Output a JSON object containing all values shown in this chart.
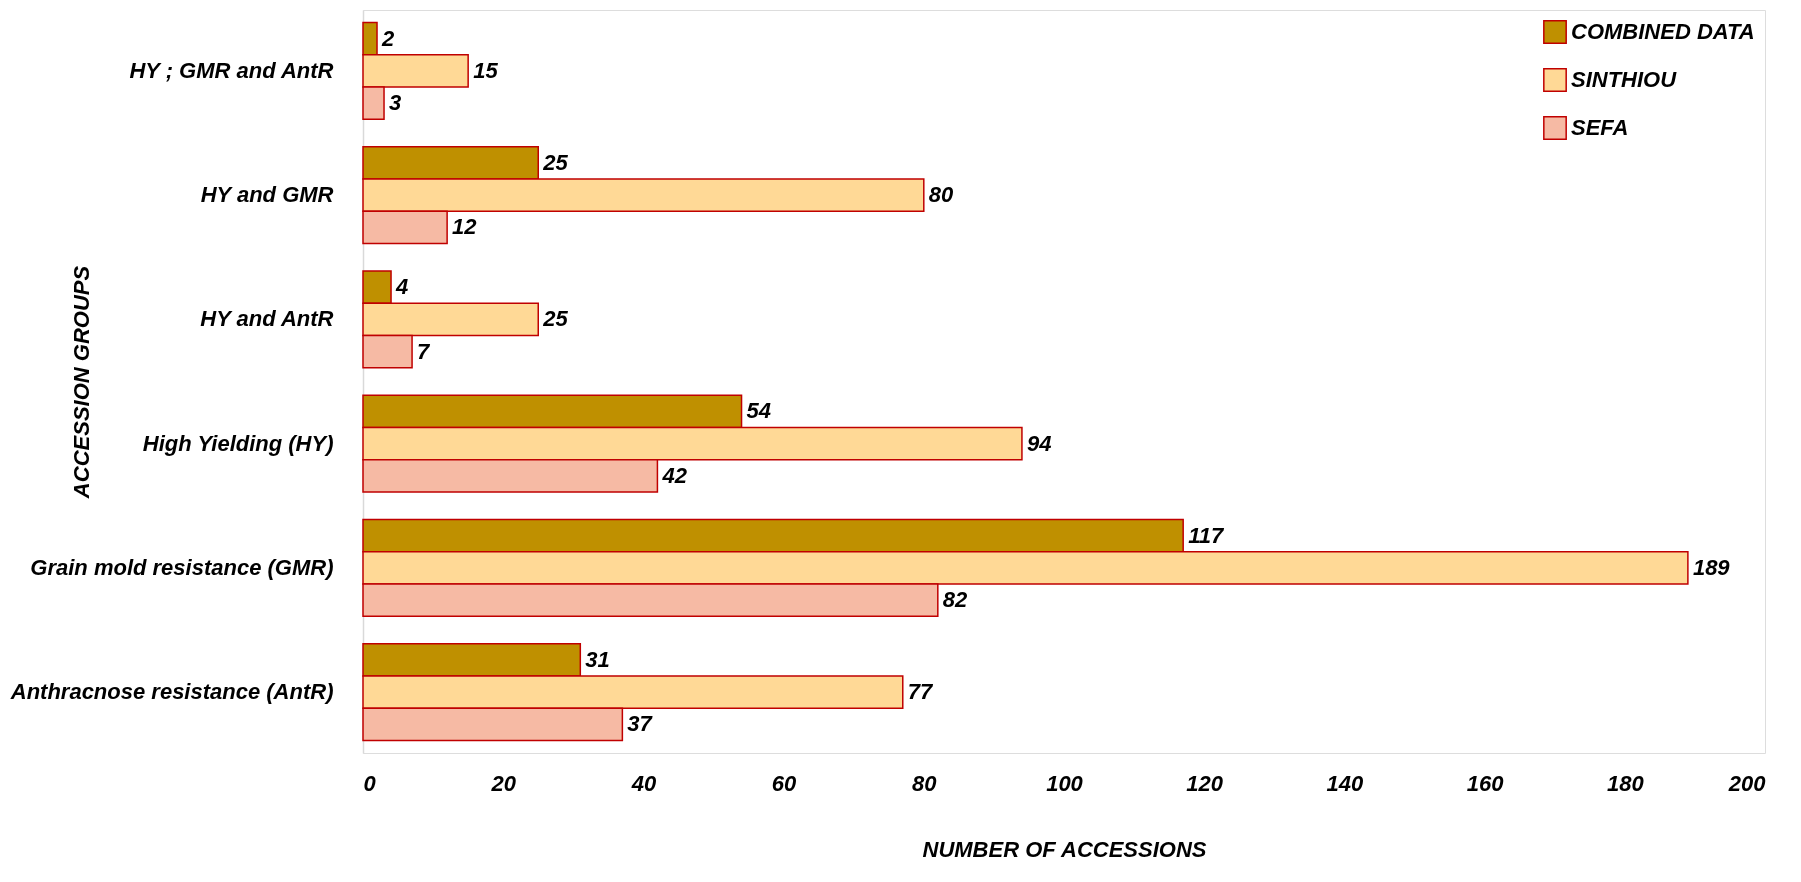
{
  "chart_data": {
    "type": "bar",
    "orientation": "horizontal",
    "xlabel": "NUMBER OF ACCESSIONS",
    "ylabel": "ACCESSION GROUPS",
    "categories": [
      "HY ; GMR and AntR",
      "HY and GMR",
      "HY and AntR",
      "High Yielding (HY)",
      "Grain mold resistance (GMR)",
      "Anthracnose resistance (AntR)"
    ],
    "series": [
      {
        "name": "COMBINED DATA",
        "color": "#bf9000",
        "values": [
          2,
          25,
          4,
          54,
          117,
          31
        ]
      },
      {
        "name": "SINTHIOU",
        "color": "#ffd996",
        "values": [
          15,
          80,
          25,
          94,
          189,
          77
        ]
      },
      {
        "name": "SEFA",
        "color": "#f6baa4",
        "values": [
          3,
          12,
          7,
          42,
          82,
          37
        ]
      }
    ],
    "xlim": [
      0,
      200
    ],
    "xticks": [
      0,
      20,
      40,
      60,
      80,
      100,
      120,
      140,
      160,
      180,
      200
    ],
    "data_labels": true,
    "grid": false,
    "legend": "top right"
  }
}
